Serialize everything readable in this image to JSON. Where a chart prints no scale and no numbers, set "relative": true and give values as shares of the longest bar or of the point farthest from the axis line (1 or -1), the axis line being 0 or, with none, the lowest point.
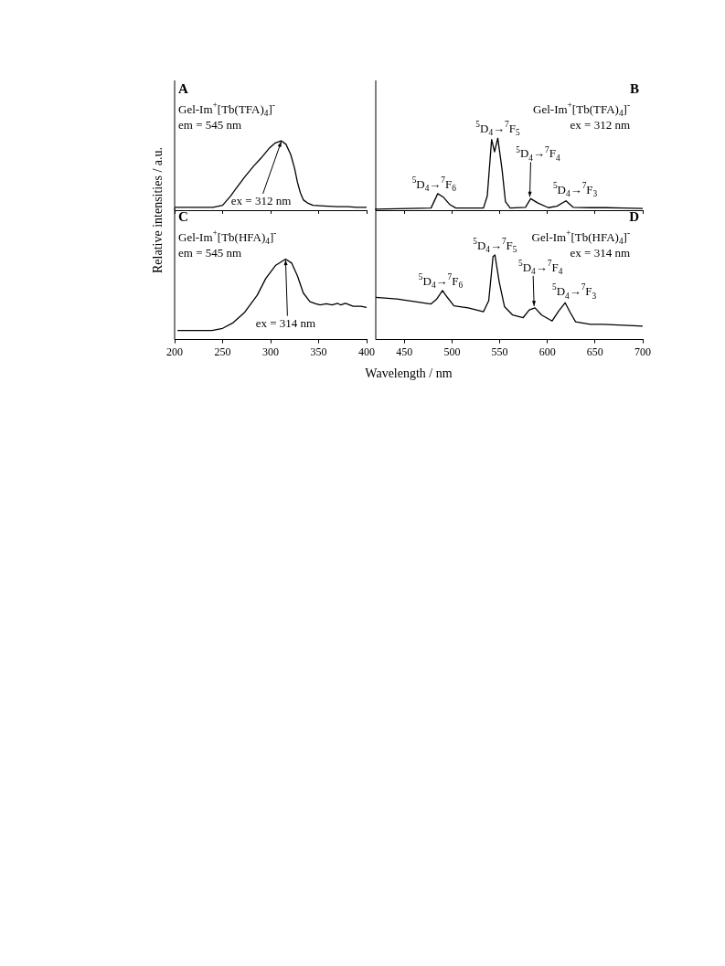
{
  "chart_data": [
    {
      "type": "line",
      "title": "A",
      "ylabel": "Relative intensities / a.u.",
      "relative": true,
      "marker": "none",
      "legend": false,
      "grid": false,
      "tick_labels": false,
      "xlim": [
        200,
        400
      ],
      "xticks": [
        200,
        250,
        300,
        350,
        400
      ],
      "x": [
        200,
        240,
        250,
        258,
        265,
        273,
        282,
        290,
        299,
        305,
        311,
        316,
        321,
        325,
        328,
        331,
        334,
        339,
        344,
        355,
        370,
        380,
        390,
        400
      ],
      "series": [
        {
          "color": "#000000",
          "values": [
            0.04,
            0.04,
            0.07,
            0.2,
            0.33,
            0.48,
            0.63,
            0.75,
            0.9,
            0.97,
            1,
            0.95,
            0.8,
            0.6,
            0.4,
            0.25,
            0.15,
            0.1,
            0.07,
            0.06,
            0.05,
            0.05,
            0.04,
            0.04
          ]
        }
      ],
      "annotations": [
        "Gel-Im$^{+}$[Tb(TFA)$_{4}$]$^{-}$",
        "em = 545 nm",
        {
          "text": "ex = 312 nm",
          "x": 311,
          "y": 1
        }
      ]
    },
    {
      "type": "line",
      "title": "B",
      "relative": true,
      "marker": "none",
      "legend": false,
      "grid": false,
      "tick_labels": false,
      "xlim": [
        420,
        700
      ],
      "xticks": [
        450,
        500,
        550,
        600,
        650,
        700
      ],
      "x": [
        420,
        478,
        485,
        491,
        497.5,
        504,
        533,
        537,
        541.5,
        544.6,
        548,
        552.6,
        556,
        561,
        577,
        582.5,
        590,
        601,
        610,
        619.5,
        627,
        645,
        662,
        680,
        700
      ],
      "series": [
        {
          "color": "#000000",
          "values": [
            0.013,
            0.03,
            0.23,
            0.18,
            0.08,
            0.03,
            0.03,
            0.2,
            0.98,
            0.81,
            1,
            0.55,
            0.12,
            0.03,
            0.04,
            0.16,
            0.1,
            0.035,
            0.055,
            0.13,
            0.04,
            0.035,
            0.035,
            0.03,
            0.025
          ]
        }
      ],
      "annotations": [
        "Gel-Im$^{+}$[Tb(TFA)$_{4}$]$^{-}$",
        "ex = 312 nm",
        {
          "text": "$^{5}$D$_{4}$→$^{7}$F$_{6}$",
          "x": 485,
          "y": 0.23
        },
        {
          "text": "$^{5}$D$_{4}$→$^{7}$F$_{5}$",
          "x": 548,
          "y": 1
        },
        {
          "text": "$^{5}$D$_{4}$→$^{7}$F$_{4}$",
          "x": 582.5,
          "y": 0.16
        },
        {
          "text": "$^{5}$D$_{4}$→$^{7}$F$_{3}$",
          "x": 619.5,
          "y": 0.13
        }
      ]
    },
    {
      "type": "line",
      "title": "C",
      "xlabel": "Wavelength / nm",
      "relative": true,
      "marker": "none",
      "legend": false,
      "grid": false,
      "tick_labels": "x",
      "xlim": [
        200,
        400
      ],
      "xticks": [
        200,
        250,
        300,
        350,
        400
      ],
      "x": [
        203,
        239,
        250,
        261,
        273,
        286,
        295,
        305,
        315.6,
        322,
        328,
        334,
        341,
        347,
        351.6,
        358,
        364,
        370,
        373,
        378,
        386,
        394,
        400
      ],
      "series": [
        {
          "color": "#000000",
          "values": [
            0.113,
            0.113,
            0.14,
            0.21,
            0.34,
            0.55,
            0.76,
            0.92,
            1,
            0.95,
            0.79,
            0.58,
            0.47,
            0.445,
            0.43,
            0.445,
            0.43,
            0.45,
            0.43,
            0.45,
            0.415,
            0.415,
            0.4
          ]
        }
      ],
      "annotations": [
        "Gel-Im$^{+}$[Tb(HFA)$_{4}$]$^{-}$",
        "em = 545 nm",
        {
          "text": "ex = 314 nm",
          "x": 315.6,
          "y": 1
        }
      ]
    },
    {
      "type": "line",
      "title": "D",
      "relative": true,
      "marker": "none",
      "legend": false,
      "grid": false,
      "tick_labels": "x",
      "xlim": [
        420,
        700
      ],
      "xticks": [
        450,
        500,
        550,
        600,
        650,
        700
      ],
      "x": [
        420,
        442,
        460,
        477.7,
        484,
        490,
        495,
        502,
        517,
        533,
        538.5,
        543,
        545,
        549.5,
        555,
        563.6,
        574.6,
        581,
        587,
        594,
        605,
        612,
        618.6,
        624,
        629.6,
        645,
        658,
        680,
        700
      ],
      "series": [
        {
          "color": "#000000",
          "values": [
            0.5,
            0.48,
            0.45,
            0.42,
            0.48,
            0.58,
            0.5,
            0.4,
            0.375,
            0.33,
            0.46,
            0.98,
            1,
            0.68,
            0.39,
            0.29,
            0.26,
            0.35,
            0.375,
            0.29,
            0.22,
            0.34,
            0.435,
            0.32,
            0.21,
            0.18,
            0.18,
            0.17,
            0.16
          ]
        }
      ],
      "annotations": [
        "Gel-Im$^{+}$[Tb(HFA)$_{4}$]$^{-}$",
        "ex = 314 nm",
        {
          "text": "$^{5}$D$_{4}$→$^{7}$F$_{6}$",
          "x": 490,
          "y": 0.58
        },
        {
          "text": "$^{5}$D$_{4}$→$^{7}$F$_{5}$",
          "x": 545,
          "y": 1
        },
        {
          "text": "$^{5}$D$_{4}$→$^{7}$F$_{4}$",
          "x": 587,
          "y": 0.375
        },
        {
          "text": "$^{5}$D$_{4}$→$^{7}$F$_{3}$",
          "x": 618.6,
          "y": 0.435
        }
      ]
    }
  ]
}
